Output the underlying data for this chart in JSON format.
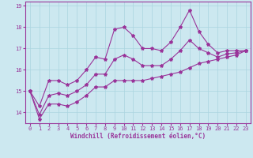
{
  "title": "",
  "xlabel": "Windchill (Refroidissement éolien,°C)",
  "ylabel": "",
  "bg_color": "#cce8f0",
  "grid_color": "#aad4e0",
  "line_color": "#993399",
  "spine_color": "#993399",
  "xlim": [
    -0.5,
    23.5
  ],
  "ylim": [
    13.5,
    19.2
  ],
  "yticks": [
    14,
    15,
    16,
    17,
    18,
    19
  ],
  "xticks": [
    0,
    1,
    2,
    3,
    4,
    5,
    6,
    7,
    8,
    9,
    10,
    11,
    12,
    13,
    14,
    15,
    16,
    17,
    18,
    19,
    20,
    21,
    22,
    23
  ],
  "x": [
    0,
    1,
    2,
    3,
    4,
    5,
    6,
    7,
    8,
    9,
    10,
    11,
    12,
    13,
    14,
    15,
    16,
    17,
    18,
    19,
    20,
    21,
    22,
    23
  ],
  "y_max": [
    15.0,
    14.3,
    15.5,
    15.5,
    15.3,
    15.5,
    16.0,
    16.6,
    16.5,
    17.9,
    18.0,
    17.6,
    17.0,
    17.0,
    16.9,
    17.3,
    18.0,
    18.8,
    17.8,
    17.2,
    16.8,
    16.9,
    16.9,
    16.9
  ],
  "y_min": [
    15.0,
    13.7,
    14.4,
    14.4,
    14.3,
    14.5,
    14.8,
    15.2,
    15.2,
    15.5,
    15.5,
    15.5,
    15.5,
    15.6,
    15.7,
    15.8,
    15.9,
    16.1,
    16.3,
    16.4,
    16.5,
    16.6,
    16.7,
    16.9
  ],
  "y_mean": [
    15.0,
    13.9,
    14.8,
    14.9,
    14.8,
    15.0,
    15.3,
    15.8,
    15.8,
    16.5,
    16.7,
    16.5,
    16.2,
    16.2,
    16.2,
    16.5,
    16.9,
    17.4,
    17.0,
    16.8,
    16.6,
    16.75,
    16.8,
    16.9
  ],
  "marker": "*",
  "markersize": 3,
  "linewidth": 0.8,
  "font_color": "#993399",
  "tick_fontsize": 5.0,
  "xlabel_fontsize": 5.5,
  "grid_linewidth": 0.5
}
